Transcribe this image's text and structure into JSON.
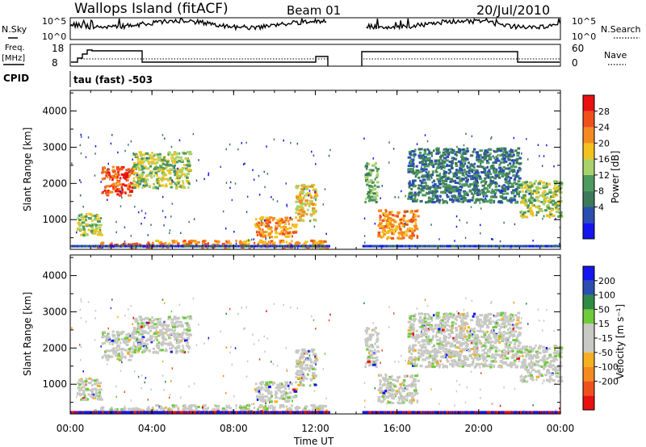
{
  "header": {
    "station": "Wallops Island (fitACF)",
    "beam": "Beam 01",
    "date": "20/Jul/2010"
  },
  "top_panels": {
    "nsky_label": "N.Sky",
    "nsky_ticks": [
      "10^5",
      "10^0"
    ],
    "nsearch_label": "N.Search",
    "nsearch_ticks": [
      "10^5",
      "10^0"
    ],
    "freq_label_1": "Freq.",
    "freq_label_2": "[MHz]",
    "freq_ticks": [
      "18",
      "8"
    ],
    "nave_label": "Nave",
    "nave_ticks": [
      "60",
      "0"
    ],
    "cpid_label": "CPID",
    "cpid_value": "tau (fast) -503"
  },
  "colors": {
    "power_scale": [
      "#1515ee",
      "#2a4fb0",
      "#3d7a5a",
      "#4f9a5e",
      "#a9d26a",
      "#f3c21c",
      "#f58a20",
      "#f0501c",
      "#e81010"
    ],
    "velocity_scale": [
      "#1515ee",
      "#2a4fb0",
      "#2f8a45",
      "#6ecb3a",
      "#c8c8c4",
      "#c8c8c4",
      "#f5b021",
      "#f58a20",
      "#f0501c",
      "#e81010"
    ],
    "velocity_gray": "#c8c8c4"
  },
  "chart_data": [
    {
      "type": "heatmap",
      "name": "Power",
      "xlabel": "Time UT",
      "ylabel": "Slant Range [km]",
      "x_ticks": [
        "00:00",
        "04:00",
        "08:00",
        "12:00",
        "16:00",
        "20:00",
        "00:00"
      ],
      "x_hours": [
        0,
        4,
        8,
        12,
        16,
        20,
        24
      ],
      "xlim_hours": [
        0,
        24
      ],
      "y_ticks": [
        1000,
        2000,
        3000,
        4000
      ],
      "ylim_km": [
        180,
        4570
      ],
      "colorbar_label": "Power [dB]",
      "colorbar_ticks": [
        "28",
        "24",
        "20",
        "16",
        "12",
        "8",
        "4"
      ],
      "colorbar_range": [
        0,
        32
      ],
      "data_gap_hours": [
        12.7,
        14.3
      ],
      "blobs": [
        {
          "t0": 1.5,
          "t1": 3.0,
          "r0": 1700,
          "r1": 2500,
          "level": 7
        },
        {
          "t0": 3.0,
          "t1": 5.8,
          "r0": 1900,
          "r1": 2900,
          "level": 4
        },
        {
          "t0": 0.3,
          "t1": 1.5,
          "r0": 600,
          "r1": 1200,
          "level": 4
        },
        {
          "t0": 1.0,
          "t1": 4.0,
          "r0": 250,
          "r1": 400,
          "level": 7
        },
        {
          "t0": 4.0,
          "t1": 12.5,
          "r0": 250,
          "r1": 450,
          "level": 6
        },
        {
          "t0": 9.0,
          "t1": 11.0,
          "r0": 550,
          "r1": 1100,
          "level": 6
        },
        {
          "t0": 11.0,
          "t1": 12.0,
          "r0": 1000,
          "r1": 2000,
          "level": 5
        },
        {
          "t0": 14.4,
          "t1": 15.0,
          "r0": 1500,
          "r1": 2600,
          "level": 3
        },
        {
          "t0": 15.0,
          "t1": 17.0,
          "r0": 500,
          "r1": 1300,
          "level": 6
        },
        {
          "t0": 16.5,
          "t1": 22.0,
          "r0": 1500,
          "r1": 3000,
          "level": 2
        },
        {
          "t0": 22.0,
          "t1": 24.0,
          "r0": 1100,
          "r1": 2100,
          "level": 4
        }
      ]
    },
    {
      "type": "heatmap",
      "name": "Velocity",
      "xlabel": "Time UT",
      "ylabel": "Slant Range [km]",
      "x_ticks": [
        "00:00",
        "04:00",
        "08:00",
        "12:00",
        "16:00",
        "20:00",
        "00:00"
      ],
      "x_hours": [
        0,
        4,
        8,
        12,
        16,
        20,
        24
      ],
      "xlim_hours": [
        0,
        24
      ],
      "y_ticks": [
        1000,
        2000,
        3000,
        4000
      ],
      "ylim_km": [
        180,
        4570
      ],
      "colorbar_label": "Velocity [m s⁻¹]",
      "colorbar_ticks": [
        "200",
        "100",
        "50",
        "15",
        "-15",
        "-50",
        "-100",
        "-200"
      ],
      "colorbar_range_ms": [
        -250,
        250
      ],
      "data_gap_hours": [
        12.7,
        14.3
      ]
    }
  ]
}
